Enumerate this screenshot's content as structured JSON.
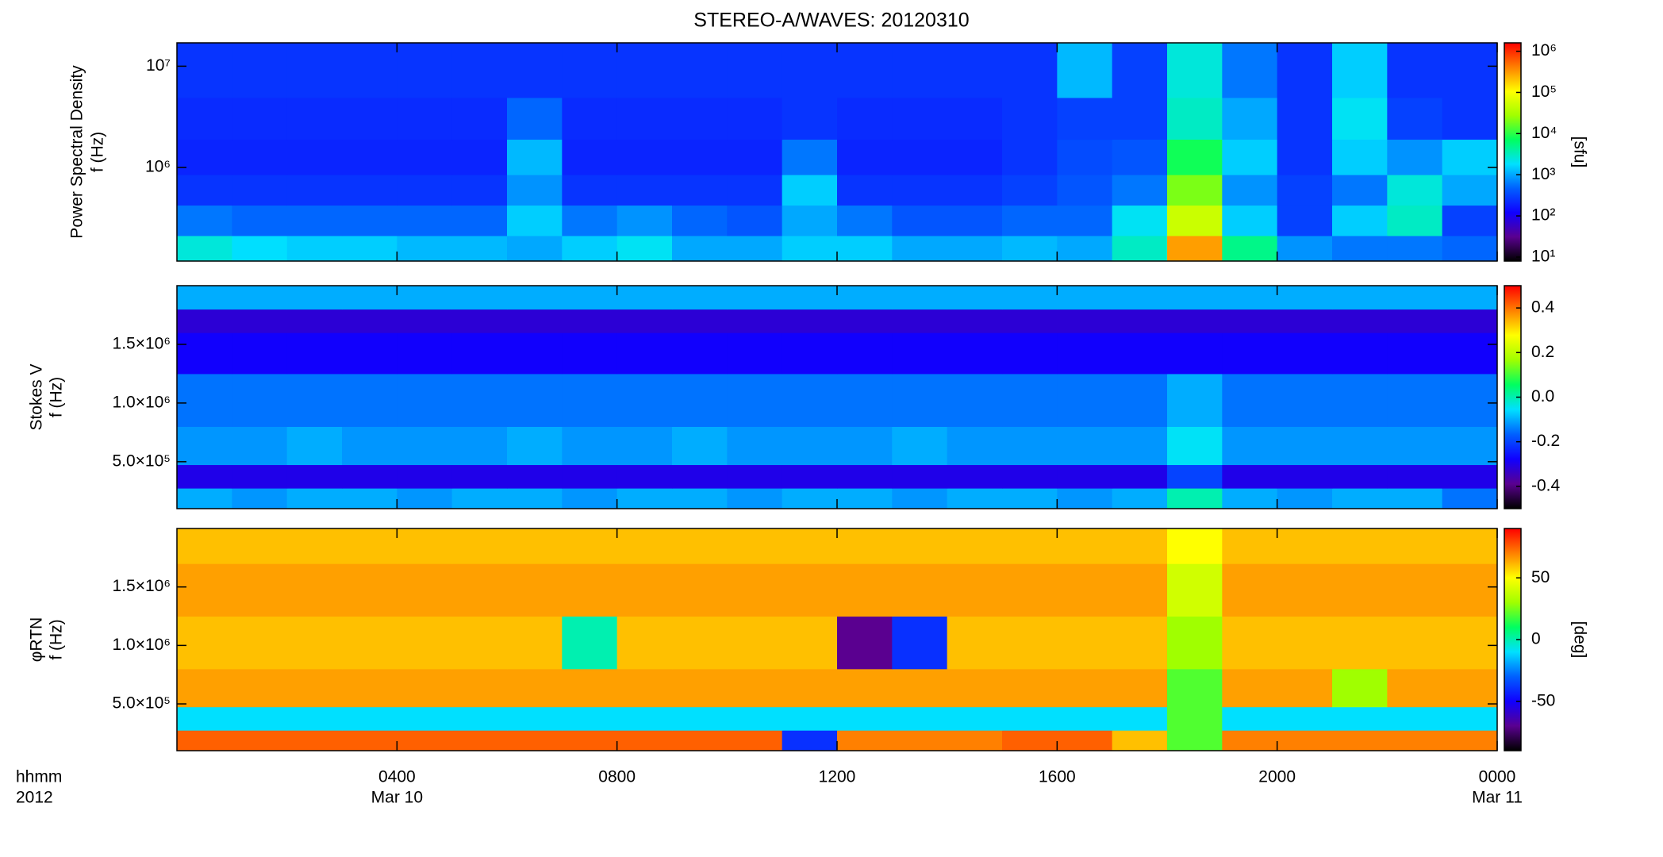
{
  "chart_data": [
    {
      "type": "heatmap",
      "title": "STEREO-A/WAVES: 20120310",
      "ylabel": [
        "Power Spectral Density",
        "f (Hz)"
      ],
      "y": [
        150000,
        300000,
        600000,
        1200000,
        3000000,
        8000000
      ],
      "ylim": [
        119000,
        17000000
      ],
      "ylog": true,
      "yticks": [
        {
          "value": 1000000,
          "label": "10⁶"
        },
        {
          "value": 10000000,
          "label": "10⁷"
        }
      ],
      "values": [
        [
          2500,
          1800,
          1500,
          1500,
          1200,
          1200,
          1000,
          1500,
          2000,
          1000,
          1000,
          1500,
          1500,
          1000,
          1000,
          1200,
          1000,
          3000,
          300000,
          5000,
          800,
          600,
          600,
          500
        ],
        [
          600,
          500,
          500,
          500,
          500,
          500,
          1500,
          600,
          800,
          500,
          400,
          1000,
          600,
          400,
          400,
          500,
          500,
          2000,
          50000,
          1500,
          300,
          1500,
          3000,
          300
        ],
        [
          250,
          250,
          250,
          250,
          250,
          250,
          800,
          250,
          250,
          250,
          250,
          1500,
          250,
          250,
          250,
          300,
          400,
          600,
          20000,
          800,
          300,
          600,
          2500,
          1000
        ],
        [
          200,
          200,
          200,
          200,
          200,
          200,
          1200,
          200,
          200,
          200,
          200,
          600,
          200,
          200,
          200,
          250,
          350,
          400,
          8000,
          1500,
          250,
          1500,
          800,
          1500
        ],
        [
          220,
          220,
          220,
          220,
          220,
          220,
          500,
          220,
          220,
          220,
          220,
          250,
          220,
          220,
          220,
          250,
          300,
          300,
          3000,
          1000,
          250,
          2000,
          300,
          250
        ],
        [
          250,
          250,
          250,
          250,
          250,
          250,
          250,
          250,
          250,
          250,
          250,
          250,
          250,
          250,
          250,
          250,
          1200,
          300,
          2500,
          600,
          250,
          1500,
          250,
          250
        ]
      ],
      "clim": [
        8,
        1600000
      ],
      "clog": true,
      "cticks": [
        {
          "value": 10,
          "label": "10¹"
        },
        {
          "value": 100,
          "label": "10²"
        },
        {
          "value": 1000,
          "label": "10³"
        },
        {
          "value": 10000,
          "label": "10⁴"
        },
        {
          "value": 100000,
          "label": "10⁵"
        },
        {
          "value": 1000000,
          "label": "10⁶"
        }
      ],
      "clabel": "[sfu]",
      "colormap": [
        "#000000",
        "#5a0090",
        "#1000ff",
        "#0060ff",
        "#00e0ff",
        "#00ff60",
        "#a0ff00",
        "#ffff00",
        "#ff8000",
        "#ff0000"
      ]
    },
    {
      "type": "heatmap",
      "ylabel": [
        "Stokes V",
        "f (Hz)"
      ],
      "y": [
        200000,
        350000,
        600000,
        1000000,
        1500000,
        1700000,
        1900000
      ],
      "ylim": [
        100000,
        2000000
      ],
      "ylog": false,
      "yticks": [
        {
          "value": 500000,
          "label": "5.0×10⁵"
        },
        {
          "value": 1000000,
          "label": "1.0×10⁶"
        },
        {
          "value": 1500000,
          "label": "1.5×10⁶"
        }
      ],
      "values": [
        [
          -0.1,
          -0.12,
          -0.1,
          -0.1,
          -0.12,
          -0.1,
          -0.1,
          -0.12,
          -0.1,
          -0.1,
          -0.12,
          -0.1,
          -0.1,
          -0.12,
          -0.1,
          -0.1,
          -0.12,
          -0.1,
          0.0,
          -0.1,
          -0.12,
          -0.1,
          -0.1,
          -0.15
        ],
        [
          -0.3,
          -0.3,
          -0.3,
          -0.3,
          -0.3,
          -0.3,
          -0.3,
          -0.3,
          -0.3,
          -0.3,
          -0.3,
          -0.3,
          -0.3,
          -0.3,
          -0.3,
          -0.3,
          -0.3,
          -0.3,
          -0.2,
          -0.3,
          -0.3,
          -0.3,
          -0.3,
          -0.3
        ],
        [
          -0.12,
          -0.12,
          -0.1,
          -0.12,
          -0.12,
          -0.12,
          -0.1,
          -0.12,
          -0.12,
          -0.1,
          -0.12,
          -0.12,
          -0.12,
          -0.1,
          -0.12,
          -0.12,
          -0.12,
          -0.12,
          -0.05,
          -0.12,
          -0.12,
          -0.12,
          -0.12,
          -0.12
        ],
        [
          -0.15,
          -0.15,
          -0.15,
          -0.15,
          -0.15,
          -0.15,
          -0.15,
          -0.15,
          -0.15,
          -0.15,
          -0.15,
          -0.15,
          -0.15,
          -0.15,
          -0.15,
          -0.15,
          -0.15,
          -0.15,
          -0.1,
          -0.15,
          -0.15,
          -0.15,
          -0.15,
          -0.15
        ],
        [
          -0.28,
          -0.28,
          -0.28,
          -0.28,
          -0.28,
          -0.28,
          -0.28,
          -0.28,
          -0.28,
          -0.28,
          -0.28,
          -0.28,
          -0.28,
          -0.28,
          -0.28,
          -0.28,
          -0.28,
          -0.28,
          -0.28,
          -0.28,
          -0.28,
          -0.28,
          -0.28,
          -0.28
        ],
        [
          -0.32,
          -0.32,
          -0.32,
          -0.32,
          -0.32,
          -0.32,
          -0.32,
          -0.32,
          -0.32,
          -0.32,
          -0.32,
          -0.32,
          -0.32,
          -0.32,
          -0.32,
          -0.32,
          -0.32,
          -0.32,
          -0.32,
          -0.32,
          -0.32,
          -0.32,
          -0.32,
          -0.32
        ],
        [
          -0.1,
          -0.1,
          -0.1,
          -0.1,
          -0.1,
          -0.1,
          -0.1,
          -0.1,
          -0.1,
          -0.1,
          -0.1,
          -0.1,
          -0.1,
          -0.1,
          -0.1,
          -0.1,
          -0.1,
          -0.1,
          -0.1,
          -0.1,
          -0.1,
          -0.1,
          -0.1,
          -0.1
        ]
      ],
      "clim": [
        -0.5,
        0.5
      ],
      "clog": false,
      "cticks": [
        -0.4,
        -0.2,
        {
          "value": 0,
          "label": "0.0"
        },
        0.2,
        0.4
      ],
      "colormap": [
        "#000000",
        "#5a0090",
        "#1000ff",
        "#0060ff",
        "#00e0ff",
        "#00ff60",
        "#a0ff00",
        "#ffff00",
        "#ff8000",
        "#ff0000"
      ]
    },
    {
      "type": "heatmap",
      "ylabel": [
        "φRTN",
        "f (Hz)"
      ],
      "y": [
        200000,
        350000,
        600000,
        1000000,
        1500000,
        1900000
      ],
      "ylim": [
        100000,
        2000000
      ],
      "ylog": false,
      "yticks": [
        {
          "value": 500000,
          "label": "5.0×10⁵"
        },
        {
          "value": 1000000,
          "label": "1.0×10⁶"
        },
        {
          "value": 1500000,
          "label": "1.5×10⁶"
        }
      ],
      "values": [
        [
          75,
          75,
          75,
          75,
          75,
          75,
          75,
          75,
          75,
          75,
          75,
          -40,
          70,
          70,
          70,
          75,
          75,
          60,
          20,
          70,
          70,
          70,
          70,
          70
        ],
        [
          -10,
          -10,
          -10,
          -10,
          -10,
          -10,
          -10,
          -10,
          -10,
          -10,
          -10,
          -10,
          -10,
          -10,
          -10,
          -10,
          -10,
          -10,
          20,
          -10,
          -10,
          -10,
          -10,
          -10
        ],
        [
          65,
          65,
          65,
          65,
          65,
          65,
          65,
          65,
          65,
          65,
          65,
          65,
          65,
          65,
          65,
          65,
          65,
          65,
          20,
          65,
          65,
          30,
          65,
          65
        ],
        [
          60,
          60,
          60,
          60,
          60,
          60,
          60,
          0,
          60,
          60,
          60,
          60,
          -70,
          -40,
          60,
          60,
          60,
          60,
          30,
          60,
          60,
          60,
          60,
          60
        ],
        [
          65,
          65,
          65,
          65,
          65,
          65,
          65,
          65,
          65,
          65,
          65,
          65,
          65,
          65,
          65,
          65,
          65,
          65,
          40,
          65,
          65,
          65,
          65,
          65
        ],
        [
          60,
          60,
          60,
          60,
          60,
          60,
          60,
          60,
          60,
          60,
          60,
          60,
          60,
          60,
          60,
          60,
          60,
          60,
          50,
          60,
          60,
          60,
          60,
          60
        ]
      ],
      "clim": [
        -90,
        90
      ],
      "clog": false,
      "cticks": [
        -50,
        0,
        50
      ],
      "clabel": "[deg]",
      "colormap": [
        "#000000",
        "#5a0090",
        "#1000ff",
        "#0060ff",
        "#00e0ff",
        "#00ff60",
        "#a0ff00",
        "#ffff00",
        "#ff8000",
        "#ff0000"
      ],
      "x": [
        0.5,
        1.5,
        2.5,
        3.5,
        4.5,
        5.5,
        6.5,
        7.5,
        8.5,
        9.5,
        10.5,
        11.5,
        12.5,
        13.5,
        14.5,
        15.5,
        16.5,
        17.5,
        18.5,
        19.5,
        20.5,
        21.5,
        22.5,
        23.5
      ],
      "xlim": [
        0,
        24
      ],
      "xticks": [
        {
          "value": 4,
          "label": "0400"
        },
        {
          "value": 8,
          "label": "0800"
        },
        {
          "value": 12,
          "label": "1200"
        },
        {
          "value": 16,
          "label": "1600"
        },
        {
          "value": 20,
          "label": "2000"
        },
        {
          "value": 24,
          "label": "0000"
        }
      ],
      "xtick_dates": [
        {
          "value": 4,
          "label": "Mar 10"
        },
        {
          "value": 24,
          "label": "Mar 11"
        }
      ],
      "xlabel": [
        "hhmm",
        "2012"
      ]
    }
  ]
}
